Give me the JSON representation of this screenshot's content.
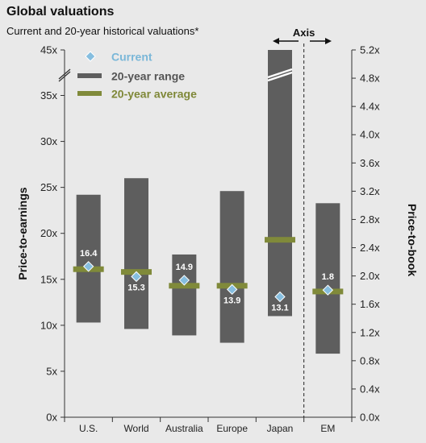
{
  "title": "Global valuations",
  "subtitle": "Current and 20-year historical valuations*",
  "axis_switch_label": "Axis",
  "colors": {
    "range": "#5e5e5e",
    "average": "#808a3a",
    "current": "#86bedf",
    "background": "#e9e9e9",
    "legend_current_text": "#7ab7d8",
    "legend_range_text": "#555555",
    "legend_average_text": "#7f8838"
  },
  "chart_data": {
    "type": "bar",
    "title": "Global valuations",
    "subtitle": "Current and 20-year historical valuations*",
    "ylabel": "Price-to-earnings",
    "y2label": "Price-to-book",
    "categories": [
      "U.S.",
      "World",
      "Australia",
      "Europe",
      "Japan",
      "EM"
    ],
    "legend": [
      "Current",
      "20-year range",
      "20-year average"
    ],
    "y_ticks": [
      "0x",
      "5x",
      "10x",
      "15x",
      "20x",
      "25x",
      "30x",
      "35x",
      "45x"
    ],
    "y2_ticks": [
      "0.0x",
      "0.4x",
      "0.8x",
      "1.2x",
      "1.6x",
      "2.0x",
      "2.4x",
      "2.8x",
      "3.2x",
      "3.6x",
      "4.0x",
      "4.4x",
      "4.8x",
      "5.2x"
    ],
    "ylim": [
      0,
      40
    ],
    "y_axis_break": {
      "top_label_value": 45,
      "break_at": 36
    },
    "y2lim": [
      0,
      5.2
    ],
    "series": [
      {
        "name": "20-year range",
        "low": [
          10.3,
          9.6,
          8.9,
          8.1,
          11.0,
          0.9
        ],
        "high": [
          24.2,
          26.0,
          17.7,
          24.6,
          45.0,
          3.03
        ]
      },
      {
        "name": "20-year average",
        "values": [
          16.1,
          15.8,
          14.3,
          14.3,
          19.3,
          1.78
        ]
      },
      {
        "name": "Current",
        "values": [
          16.4,
          15.3,
          14.9,
          13.9,
          13.1,
          1.8
        ]
      }
    ],
    "data_labels": [
      "16.4",
      "15.3",
      "14.9",
      "13.9",
      "13.1",
      "1.8"
    ],
    "secondary_axis_categories": [
      "EM"
    ]
  }
}
